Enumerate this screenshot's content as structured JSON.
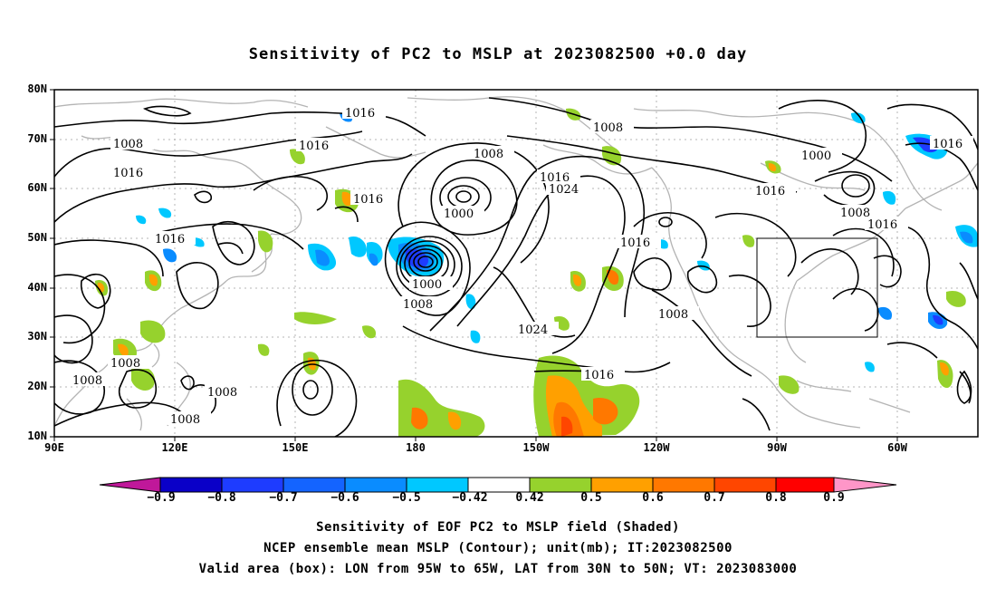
{
  "title": "Sensitivity of PC2 to MSLP at 2023082500 +0.0 day",
  "lat_labels": [
    "80N",
    "70N",
    "60N",
    "50N",
    "40N",
    "30N",
    "20N",
    "10N"
  ],
  "lon_labels": [
    "90E",
    "120E",
    "150E",
    "180",
    "150W",
    "120W",
    "90W",
    "60W"
  ],
  "contour_labels": [
    {
      "text": "1016"
    },
    {
      "text": "1008"
    },
    {
      "text": "1016"
    },
    {
      "text": "1016"
    },
    {
      "text": "1008"
    },
    {
      "text": "1000"
    },
    {
      "text": "1016"
    },
    {
      "text": "1016"
    },
    {
      "text": "1024"
    },
    {
      "text": "1016"
    },
    {
      "text": "1000"
    },
    {
      "text": "1016"
    },
    {
      "text": "1008"
    },
    {
      "text": "1016"
    },
    {
      "text": "1016"
    },
    {
      "text": "1008"
    },
    {
      "text": "1024"
    },
    {
      "text": "1016"
    },
    {
      "text": "1000"
    },
    {
      "text": "1008"
    },
    {
      "text": "1008"
    },
    {
      "text": "1008"
    },
    {
      "text": "1008"
    },
    {
      "text": "1008"
    }
  ],
  "colorbar": {
    "labels": [
      "−0.9",
      "−0.8",
      "−0.7",
      "−0.6",
      "−0.5",
      "−0.42",
      "0.42",
      "0.5",
      "0.6",
      "0.7",
      "0.8",
      "0.9"
    ],
    "colors": [
      "#0a00c8",
      "#1e3cff",
      "#1464ff",
      "#0a8cff",
      "#00c8ff",
      "#ffffff",
      "#96d22d",
      "#ffa000",
      "#ff7800",
      "#ff4600",
      "#ff0000"
    ],
    "low_extend_color": "#c0189a",
    "high_extend_color": "#ff96c8"
  },
  "captions": [
    "Sensitivity of EOF PC2 to MSLP field (Shaded)",
    "NCEP ensemble mean MSLP (Contour); unit(mb); IT:2023082500",
    "Valid area (box): LON from 95W to 65W, LAT from 30N to 50N; VT: 2023083000"
  ],
  "valid_box": {
    "lon_min": "95W",
    "lon_max": "65W",
    "lat_min": "30N",
    "lat_max": "50N"
  }
}
